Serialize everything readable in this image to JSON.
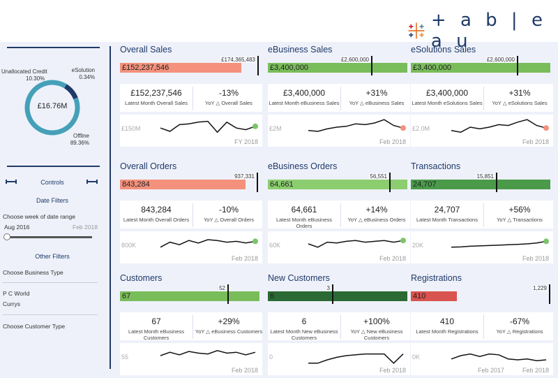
{
  "brand": {
    "logo_text": "+ a b | e a u",
    "logo_name": "tableau"
  },
  "sidebar": {
    "donut": {
      "center": "£16.76M",
      "segments": [
        {
          "label": "Unallocated Credit",
          "pct": "10.30%",
          "value": 10.3,
          "color": "#1f3a68"
        },
        {
          "label": "eSolution",
          "pct": "0.34%",
          "value": 0.34,
          "color": "#5b8fb9"
        },
        {
          "label": "Offline",
          "pct": "89.36%",
          "value": 89.36,
          "color": "#45a0b8"
        }
      ]
    },
    "controls_title": "Controls",
    "date_filters_title": "Date Filters",
    "date_range_label": "Choose week of date range",
    "date_start": "Aug 2016",
    "date_end": "Feb 2018",
    "other_filters_title": "Other Filters",
    "business_type_label": "Choose Business Type",
    "business_values": [
      "P C World",
      "Currys"
    ],
    "customer_type_label": "Choose Customer Type"
  },
  "panels": [
    {
      "id": "overall-sales",
      "title": "Overall Sales",
      "bar_value": "£152,237,546",
      "bar_fill": 0.87,
      "bar_color": "#f4917c",
      "target_label": "£174,365,483",
      "target_pos": 0.985,
      "kpi_left": "£152,237,546",
      "cap_left": "Latest Month Overall Sales",
      "kpi_right": "-13%",
      "cap_right": "YoY △ Overall Sales",
      "spark_label": "£150M",
      "spark_date": "FY 2018",
      "dot_color": "#7cc46a",
      "spark": [
        0.55,
        0.75,
        0.35,
        0.3,
        0.2,
        0.15,
        0.8,
        0.2,
        0.55,
        0.65,
        0.45
      ]
    },
    {
      "id": "ebusiness-sales",
      "title": "eBusiness Sales",
      "bar_value": "£3,400,000",
      "bar_fill": 1.0,
      "bar_color": "#79bd5b",
      "target_label": "£2,600,000",
      "target_pos": 0.74,
      "kpi_left": "£3,400,000",
      "cap_left": "Latest Month eBusiness Sales",
      "kpi_right": "+31%",
      "cap_right": "YoY △ eBusiness Sales",
      "spark_label": "£2M",
      "spark_date": "Feb 2018",
      "dot_color": "#f4917c",
      "spark": [
        0.7,
        0.75,
        0.6,
        0.5,
        0.45,
        0.3,
        0.35,
        0.25,
        0.05,
        0.4,
        0.55
      ]
    },
    {
      "id": "esolutions-sales",
      "title": "eSolutions Sales",
      "bar_value": "£3,400,000",
      "bar_fill": 1.0,
      "bar_color": "#79bd5b",
      "target_label": "£2,600,000",
      "target_pos": 0.76,
      "kpi_left": "£3,400,000",
      "cap_left": "Latest Month eSolutions Sales",
      "kpi_right": "+31%",
      "cap_right": "YoY △ eSolutions Sales",
      "spark_label": "£2.0M",
      "spark_date": "Feb 2018",
      "dot_color": "#f4917c",
      "spark": [
        0.7,
        0.8,
        0.5,
        0.6,
        0.5,
        0.35,
        0.4,
        0.2,
        0.05,
        0.4,
        0.55
      ]
    },
    {
      "id": "overall-orders",
      "title": "Overall Orders",
      "bar_value": "843,284",
      "bar_fill": 0.9,
      "bar_color": "#f4917c",
      "target_label": "937,331",
      "target_pos": 0.98,
      "kpi_left": "843,284",
      "cap_left": "Latest Month Overall Orders",
      "kpi_right": "-10%",
      "cap_right": "YoY △ Overall Orders",
      "spark_label": "800K",
      "spark_date": "Feb 2018",
      "dot_color": "#7cc46a",
      "spark": [
        0.7,
        0.4,
        0.55,
        0.3,
        0.45,
        0.25,
        0.3,
        0.4,
        0.35,
        0.45,
        0.35
      ]
    },
    {
      "id": "ebusiness-orders",
      "title": "eBusiness Orders",
      "bar_value": "64,661",
      "bar_fill": 1.0,
      "bar_color": "#8cce6f",
      "target_label": "56,551",
      "target_pos": 0.87,
      "kpi_left": "64,661",
      "cap_left": "Latest Month eBusiness Orders",
      "kpi_right": "+14%",
      "cap_right": "YoY △ eBusiness Orders",
      "spark_label": "60K",
      "spark_date": "Feb 2018",
      "dot_color": "#7cc46a",
      "spark": [
        0.5,
        0.7,
        0.4,
        0.45,
        0.35,
        0.3,
        0.4,
        0.35,
        0.3,
        0.4,
        0.3
      ]
    },
    {
      "id": "transactions",
      "title": "Transactions",
      "bar_value": "24,707",
      "bar_fill": 1.0,
      "bar_color": "#4a9a4a",
      "target_label": "15,851",
      "target_pos": 0.61,
      "kpi_left": "24,707",
      "cap_left": "Latest Month Transactions",
      "kpi_right": "+56%",
      "cap_right": "YoY △ Transactions",
      "spark_label": "20K",
      "spark_date": "Feb 2018",
      "dot_color": "#7cc46a",
      "spark": [
        0.7,
        0.68,
        0.64,
        0.62,
        0.6,
        0.58,
        0.55,
        0.53,
        0.5,
        0.45,
        0.35
      ]
    },
    {
      "id": "customers",
      "title": "Customers",
      "bar_value": "67",
      "bar_fill": 1.0,
      "bar_color": "#79bd5b",
      "target_label": "52",
      "target_pos": 0.77,
      "kpi_left": "67",
      "cap_left": "Latest Month eBusiness Customers",
      "kpi_right": "+29%",
      "cap_right": "YoY △ eBusiness Customers",
      "spark_label": "55",
      "spark_date": "Feb 2018",
      "dot_color": "",
      "spark": [
        0.5,
        0.3,
        0.45,
        0.25,
        0.35,
        0.4,
        0.2,
        0.35,
        0.3,
        0.45,
        0.3
      ]
    },
    {
      "id": "new-customers",
      "title": "New Customers",
      "bar_value": "6",
      "bar_fill": 1.0,
      "bar_color": "#2b6a35",
      "target_label": "3",
      "target_pos": 0.46,
      "kpi_left": "6",
      "cap_left": "Latest Month New eBusiness Customers",
      "kpi_right": "+100%",
      "cap_right": "YoY △ New eBusiness Customers",
      "spark_label": "0",
      "spark_date": "Feb 2018",
      "dot_color": "",
      "spark": [
        0.95,
        0.95,
        0.75,
        0.6,
        0.5,
        0.45,
        0.4,
        0.4,
        0.4,
        0.95,
        0.4
      ]
    },
    {
      "id": "registrations",
      "title": "Registrations",
      "bar_value": "410",
      "bar_fill": 0.33,
      "bar_color": "#d9534f",
      "target_label": "1,229",
      "target_pos": 0.99,
      "kpi_left": "410",
      "cap_left": "Latest Month Registrations",
      "kpi_right": "-67%",
      "cap_right": "YoY △ Registrations",
      "spark_label": "0K",
      "spark_date": "Feb 2018",
      "spark_date2": "Feb 2017",
      "dot_color": "",
      "spark": [
        0.7,
        0.5,
        0.4,
        0.55,
        0.4,
        0.45,
        0.7,
        0.75,
        0.7,
        0.8,
        0.75
      ]
    }
  ]
}
